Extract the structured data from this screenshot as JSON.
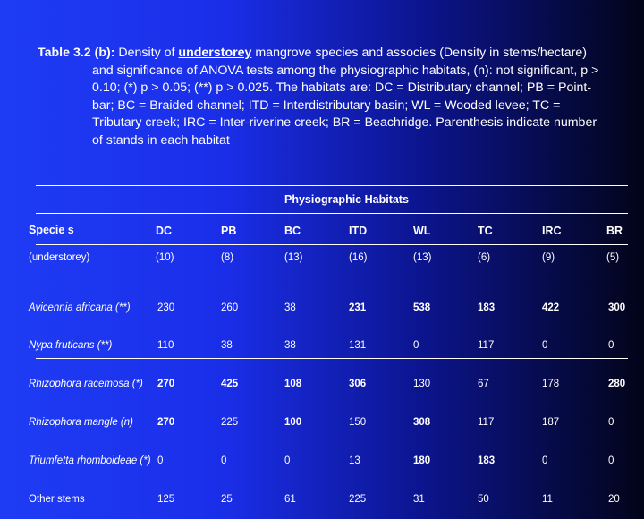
{
  "caption": {
    "label": "Table 3.2 (b):",
    "text_a": " Density of  ",
    "emphasis": "understorey",
    "text_b": " mangrove species and associes (Density in stems/hectare) and significance of ANOVA tests among the physiographic habitats, (n): not significant, p > 0.10; (*) p > 0.05; (**) p > 0.025.  The habitats are: DC = Distributary channel; PB = Point-bar; BC = Braided channel; ITD = Interdistributary basin; WL = Wooded levee; TC = Tributary creek; IRC = Inter-riverine creek; BR = Beachridge. Parenthesis indicate number of stands in each habitat"
  },
  "table": {
    "group_header": "Physiographic Habitats",
    "species_header": "Specie s",
    "columns": [
      "DC",
      "PB",
      "BC",
      "ITD",
      "WL",
      "TC",
      "IRC",
      "BR"
    ],
    "stands_label": "(understorey)",
    "stands": [
      "(10)",
      "(8)",
      "(13)",
      "(16)",
      "(13)",
      "(6)",
      "(9)",
      "(5)"
    ],
    "species": [
      "Avicennia africana (**)",
      "Nypa fruticans (**)",
      "Rhizophora racemosa (*)",
      "Rhizophora mangle (n)",
      "Triumfetta rhomboideae (*)",
      "Other stems"
    ],
    "values": [
      [
        "230",
        "110",
        "270",
        "270",
        "0",
        "125"
      ],
      [
        "260",
        "38",
        "425",
        "225",
        "0",
        "25"
      ],
      [
        "38",
        "38",
        "108",
        "100",
        "0",
        "61"
      ],
      [
        "231",
        "131",
        "306",
        "150",
        "13",
        "225"
      ],
      [
        "538",
        "0",
        "130",
        "308",
        "180",
        "31"
      ],
      [
        "183",
        "117",
        "67",
        "117",
        "183",
        "50"
      ],
      [
        "422",
        "0",
        "178",
        "187",
        "0",
        "11"
      ],
      [
        "300",
        "0",
        "280",
        "0",
        "0",
        "20"
      ]
    ]
  }
}
